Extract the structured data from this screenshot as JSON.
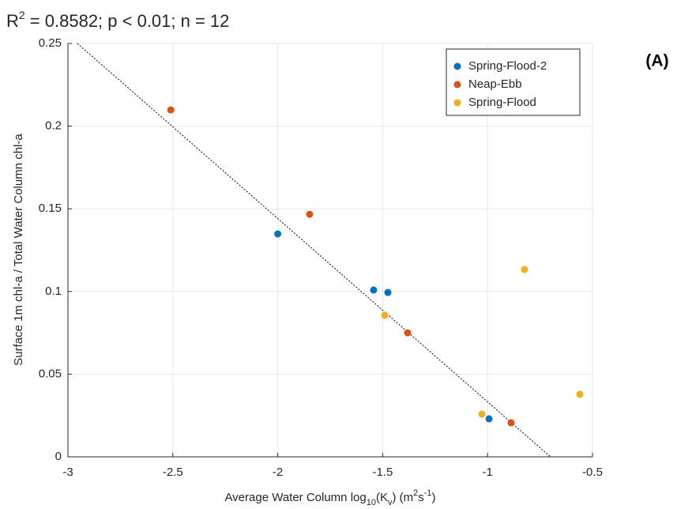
{
  "chart_data": {
    "type": "scatter",
    "title": [
      "R",
      "2",
      " = 0.8582; p < 0.01; n = 12"
    ],
    "panel_label": "(A)",
    "xlabel": [
      "Average Water Column log",
      "10",
      "(K",
      "v",
      ") (m",
      "2",
      "s",
      "-1",
      ")"
    ],
    "ylabel": "Surface 1m chl-a / Total Water Column chl-a",
    "xlim": [
      -3,
      -0.5
    ],
    "ylim": [
      0,
      0.25
    ],
    "xticks": [
      -3,
      -2.5,
      -2,
      -1.5,
      -1,
      -0.5
    ],
    "yticks": [
      0,
      0.05,
      0.1,
      0.15,
      0.2,
      0.25
    ],
    "grid": true,
    "legend": "upper right",
    "series": [
      {
        "name": "Spring-Flood-2",
        "color": "#0072BD",
        "x": [
          -2.0,
          -1.543,
          -1.475,
          -0.993
        ],
        "values": [
          0.1348,
          0.1009,
          0.0994,
          0.023
        ]
      },
      {
        "name": "Neap-Ebb",
        "color": "#D95319",
        "x": [
          -2.51,
          -1.848,
          -1.381,
          -0.888
        ],
        "values": [
          0.2098,
          0.1467,
          0.075,
          0.0206
        ]
      },
      {
        "name": "Spring-Flood",
        "color": "#EDB120",
        "x": [
          -1.49,
          -1.027,
          -0.824,
          -0.56
        ],
        "values": [
          0.0856,
          0.0258,
          0.1133,
          0.0378
        ]
      }
    ],
    "fit_line": {
      "color": "#000000",
      "x": [
        -2.955,
        -0.7
      ],
      "values": [
        0.25,
        0
      ]
    }
  }
}
